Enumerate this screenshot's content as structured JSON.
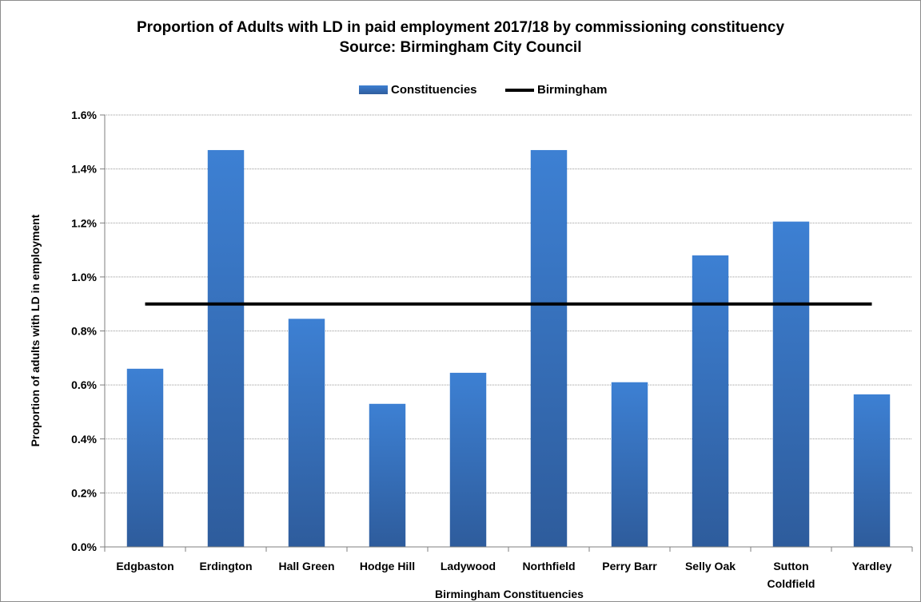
{
  "chart_data": {
    "type": "bar",
    "title": "Proportion of Adults with LD in paid employment 2017/18 by commissioning constituency",
    "subtitle": "Source: Birmingham City Council",
    "xlabel": "Birmingham Constituencies",
    "ylabel": "Proportion of adults with LD in employment",
    "ylim": [
      0,
      0.016
    ],
    "yticks": [
      "0.0%",
      "0.2%",
      "0.4%",
      "0.6%",
      "0.8%",
      "1.0%",
      "1.2%",
      "1.4%",
      "1.6%"
    ],
    "categories": [
      "Edgbaston",
      "Erdington",
      "Hall Green",
      "Hodge Hill",
      "Ladywood",
      "Northfield",
      "Perry Barr",
      "Selly Oak",
      "Sutton\nColdfield",
      "Yardley"
    ],
    "series": [
      {
        "name": "Constituencies",
        "kind": "bar",
        "color": "#3a78c9",
        "values": [
          0.0066,
          0.0147,
          0.00845,
          0.0053,
          0.00645,
          0.0147,
          0.0061,
          0.0108,
          0.01205,
          0.00565
        ]
      },
      {
        "name": "Birmingham",
        "kind": "line",
        "color": "#000000",
        "value": 0.009
      }
    ],
    "grid": true,
    "legend": "top-center"
  }
}
